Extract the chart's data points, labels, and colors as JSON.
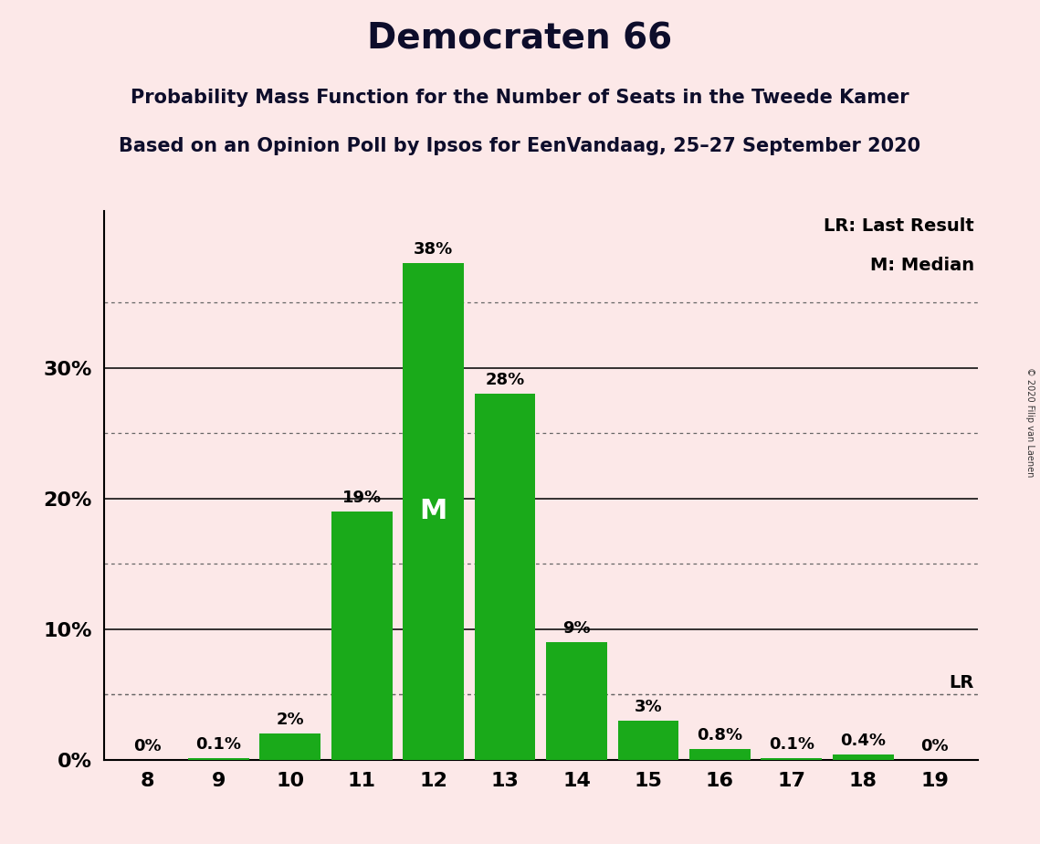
{
  "title": "Democraten 66",
  "subtitle1": "Probability Mass Function for the Number of Seats in the Tweede Kamer",
  "subtitle2": "Based on an Opinion Poll by Ipsos for EenVandaag, 25–27 September 2020",
  "categories": [
    8,
    9,
    10,
    11,
    12,
    13,
    14,
    15,
    16,
    17,
    18,
    19
  ],
  "values": [
    0.0,
    0.1,
    2.0,
    19.0,
    38.0,
    28.0,
    9.0,
    3.0,
    0.8,
    0.1,
    0.4,
    0.0
  ],
  "labels": [
    "0%",
    "0.1%",
    "2%",
    "19%",
    "38%",
    "28%",
    "9%",
    "3%",
    "0.8%",
    "0.1%",
    "0.4%",
    "0%"
  ],
  "bar_color": "#1aaa1a",
  "background_color": "#fce8e8",
  "median_bar": 12,
  "lr_value": 5.0,
  "lr_label": "LR",
  "median_label": "M",
  "legend_lr": "LR: Last Result",
  "legend_m": "M: Median",
  "copyright": "© 2020 Filip van Laenen",
  "solid_lines": [
    10,
    20,
    30
  ],
  "dotted_lines": [
    5,
    15,
    25,
    35
  ],
  "ylim": [
    0,
    42
  ],
  "title_fontsize": 28,
  "subtitle_fontsize": 15,
  "label_fontsize": 13,
  "ytick_fontsize": 16,
  "xtick_fontsize": 16,
  "legend_fontsize": 14
}
